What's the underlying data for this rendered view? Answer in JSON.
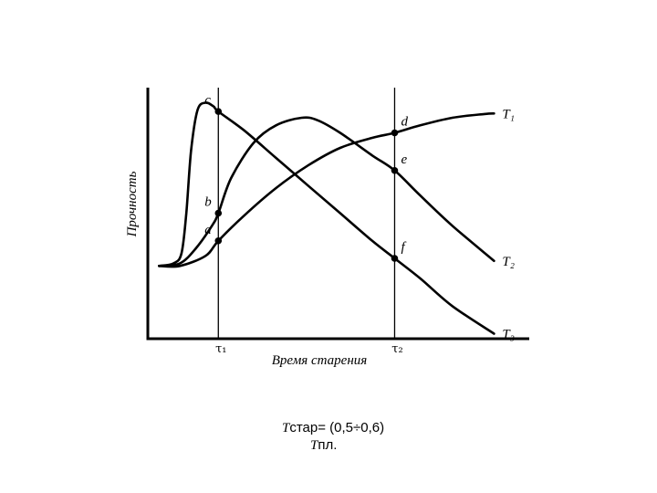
{
  "chart_data": {
    "type": "line",
    "ylabel": "Прочность",
    "xlabel": "Время старения",
    "grid": false,
    "legend": "none",
    "vlines": [
      {
        "label": "τ₁",
        "x": 2.2
      },
      {
        "label": "τ₂",
        "x": 7.7
      }
    ],
    "xlim": [
      0,
      11.9
    ],
    "ylim": [
      0,
      10
    ],
    "series": [
      {
        "name": "T₁",
        "x": [
          0.35,
          1.0,
          1.8,
          2.2,
          3.0,
          4.0,
          5.0,
          6.0,
          7.0,
          7.7,
          8.5,
          9.5,
          10.5,
          10.8
        ],
        "y": [
          2.9,
          2.9,
          3.3,
          3.9,
          4.9,
          6.0,
          6.9,
          7.6,
          8.0,
          8.2,
          8.5,
          8.8,
          8.95,
          8.97
        ]
      },
      {
        "name": "T₂",
        "x": [
          0.35,
          1.0,
          1.5,
          2.0,
          2.2,
          2.6,
          3.3,
          4.0,
          4.8,
          5.3,
          6.0,
          7.0,
          7.7,
          8.5,
          9.5,
          10.8
        ],
        "y": [
          2.9,
          3.0,
          3.6,
          4.5,
          5.0,
          6.4,
          7.8,
          8.5,
          8.8,
          8.7,
          8.2,
          7.3,
          6.7,
          5.7,
          4.5,
          3.1
        ]
      },
      {
        "name": "T₃",
        "x": [
          0.35,
          0.8,
          1.05,
          1.2,
          1.35,
          1.55,
          1.8,
          2.05,
          2.2,
          3.0,
          4.0,
          5.0,
          6.0,
          7.0,
          7.7,
          8.5,
          9.5,
          10.8
        ],
        "y": [
          2.9,
          3.0,
          3.4,
          5.0,
          7.5,
          9.1,
          9.4,
          9.25,
          9.05,
          8.3,
          7.2,
          6.1,
          5.0,
          3.9,
          3.2,
          2.4,
          1.3,
          0.2
        ]
      }
    ],
    "series_labels": [
      "T₁",
      "T₂",
      "T₃"
    ],
    "points": [
      {
        "label": "a",
        "x": 2.2,
        "y": 3.9
      },
      {
        "label": "b",
        "x": 2.2,
        "y": 5.0
      },
      {
        "label": "c",
        "x": 2.2,
        "y": 9.05
      },
      {
        "label": "d",
        "x": 7.7,
        "y": 8.2
      },
      {
        "label": "e",
        "x": 7.7,
        "y": 6.7
      },
      {
        "label": "f",
        "x": 7.7,
        "y": 3.2
      }
    ]
  },
  "caption": {
    "line1_var": "T",
    "line1_rest": "стар= (0,5÷0,6)",
    "line2_var": "T",
    "line2_rest": "пл."
  }
}
